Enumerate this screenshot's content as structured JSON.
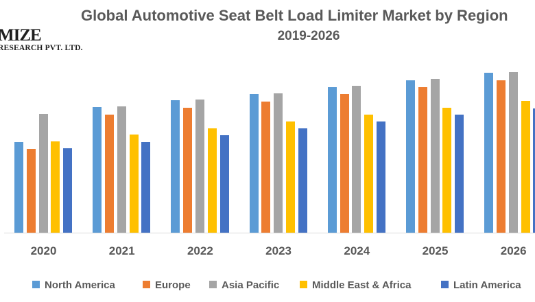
{
  "logo": {
    "line1": "MIZE",
    "line2": "RESEARCH PVT. LTD."
  },
  "title": {
    "line1": "Global Automotive Seat Belt Load Limiter Market by Region",
    "line2": "2019-2026"
  },
  "colors": {
    "text": "#595959",
    "axis_line": "#d9d9d9",
    "background": "#ffffff"
  },
  "chart_data": {
    "type": "bar",
    "title": "Global Automotive Seat Belt Load Limiter Market by Region",
    "subtitle": "2019-2026",
    "categories": [
      "2020",
      "2021",
      "2022",
      "2023",
      "2024",
      "2025",
      "2026"
    ],
    "series": [
      {
        "name": "North America",
        "color": "#5B9BD5",
        "values": [
          132,
          183,
          193,
          202,
          212,
          222,
          233
        ]
      },
      {
        "name": "Europe",
        "color": "#ED7D31",
        "values": [
          122,
          172,
          182,
          191,
          202,
          212,
          222
        ]
      },
      {
        "name": "Asia Pacific",
        "color": "#A5A5A5",
        "values": [
          173,
          184,
          194,
          203,
          214,
          224,
          234
        ]
      },
      {
        "name": "Middle East & Africa",
        "color": "#FFC000",
        "values": [
          133,
          143,
          152,
          162,
          172,
          182,
          192
        ]
      },
      {
        "name": "Latin America",
        "color": "#4472C4",
        "values": [
          123,
          132,
          142,
          152,
          162,
          172,
          181
        ]
      }
    ],
    "xlabel": "",
    "ylabel": "",
    "value_note": "relative bar heights; no y-axis scale shown in chart",
    "ylim": [
      0,
      243
    ],
    "grid": false,
    "y_axis_visible": false,
    "legend_position": "bottom"
  }
}
